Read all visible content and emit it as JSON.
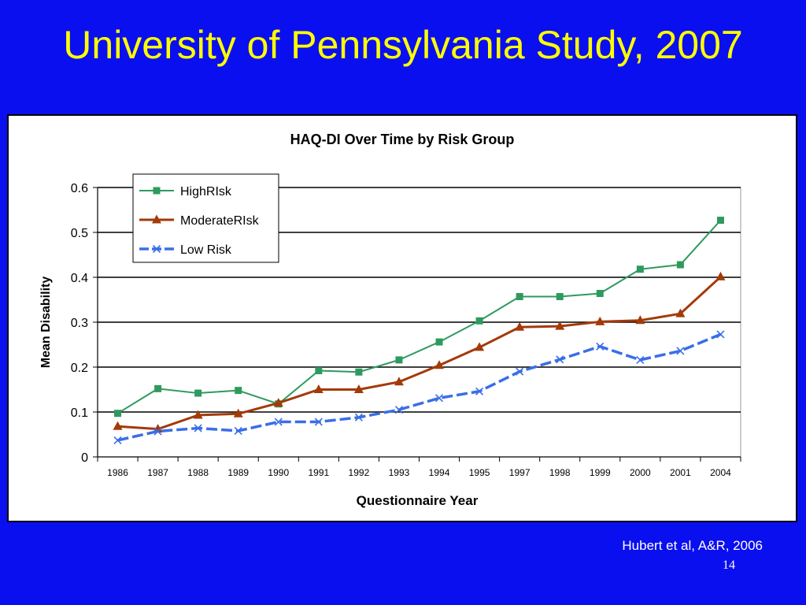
{
  "slide": {
    "title": "University of Pennsylvania Study, 2007",
    "citation": "Hubert et al, A&R, 2006",
    "page_number": "14",
    "background_color": "#0a0ff0",
    "title_color": "#ffff00"
  },
  "chart_data": {
    "type": "line",
    "title": "HAQ-DI Over Time by Risk Group",
    "xlabel": "Questionnaire Year",
    "ylabel": "Mean Disability",
    "categories": [
      "1986",
      "1987",
      "1988",
      "1989",
      "1990",
      "1991",
      "1992",
      "1993",
      "1994",
      "1995",
      "1997",
      "1998",
      "1999",
      "2000",
      "2001",
      "2004"
    ],
    "ylim": [
      0,
      0.6
    ],
    "yticks": [
      "0",
      "0.1",
      "0.2",
      "0.3",
      "0.4",
      "0.5",
      "0.6"
    ],
    "grid": true,
    "legend_position": "top-left",
    "series": [
      {
        "name": "HighRIsk",
        "color": "#2e9a5e",
        "marker": "square",
        "values": [
          0.097,
          0.152,
          0.142,
          0.148,
          0.118,
          0.192,
          0.189,
          0.216,
          0.256,
          0.303,
          0.357,
          0.357,
          0.364,
          0.418,
          0.428,
          0.527
        ]
      },
      {
        "name": "ModerateRIsk",
        "color": "#a33a08",
        "marker": "triangle",
        "values": [
          0.068,
          0.062,
          0.093,
          0.096,
          0.12,
          0.15,
          0.15,
          0.167,
          0.204,
          0.244,
          0.289,
          0.291,
          0.301,
          0.304,
          0.319,
          0.401
        ]
      },
      {
        "name": "Low Risk",
        "color": "#3a6ee8",
        "marker": "x",
        "dashed": true,
        "values": [
          0.037,
          0.057,
          0.064,
          0.058,
          0.078,
          0.078,
          0.088,
          0.105,
          0.131,
          0.146,
          0.19,
          0.217,
          0.246,
          0.216,
          0.236,
          0.273
        ]
      }
    ]
  }
}
